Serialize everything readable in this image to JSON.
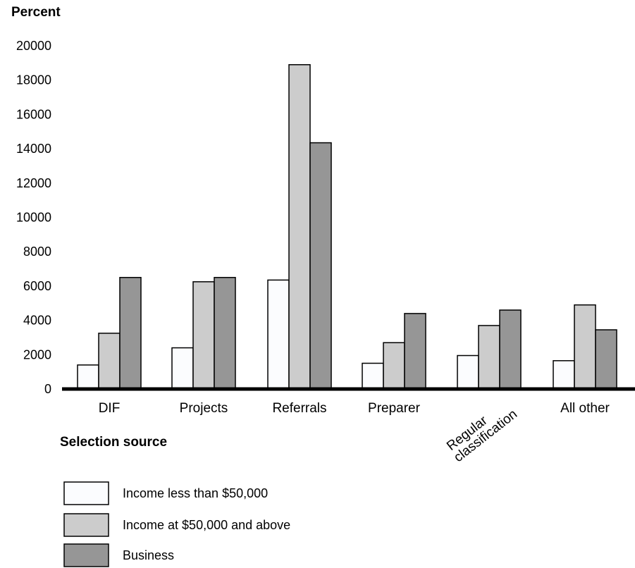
{
  "chart_data": {
    "type": "bar",
    "title": "",
    "ylabel": "Percent",
    "xlabel": "Selection source",
    "ylim": [
      0,
      20000
    ],
    "yticks": [
      0,
      2000,
      4000,
      6000,
      8000,
      10000,
      12000,
      14000,
      16000,
      18000,
      20000
    ],
    "grid": false,
    "legend_position": "bottom-left",
    "categories": [
      "DIF",
      "Projects",
      "Referrals",
      "Preparer",
      "Regular classification",
      "All other"
    ],
    "series": [
      {
        "name": "Income less than $50,000",
        "color": "#fbfcfe",
        "values": [
          1400,
          2400,
          6350,
          1500,
          1950,
          1650
        ]
      },
      {
        "name": "Income at $50,000 and above",
        "color": "#cccccc",
        "values": [
          3250,
          6250,
          18900,
          2700,
          3700,
          4900
        ]
      },
      {
        "name": "Business",
        "color": "#969696",
        "values": [
          6500,
          6500,
          14350,
          4400,
          4600,
          3450
        ]
      }
    ]
  }
}
